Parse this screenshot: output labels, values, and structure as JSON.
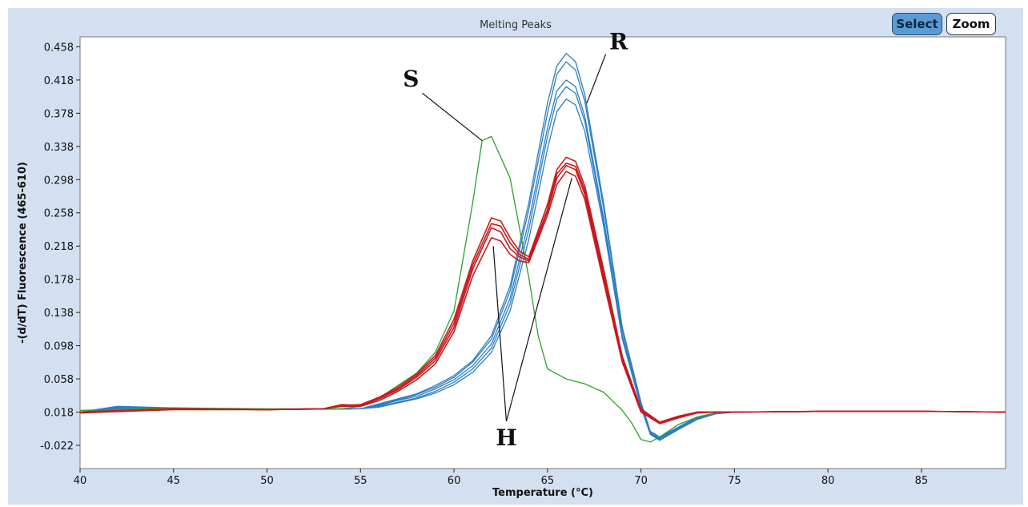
{
  "toolbar": {
    "select_label": "Select",
    "zoom_label": "Zoom"
  },
  "colors": {
    "S": "#2ca02c",
    "H": "#c8191e",
    "R": "#2b7dc6"
  },
  "chart_data": {
    "type": "line",
    "title": "Melting Peaks",
    "xlabel": "Temperature (°C)",
    "ylabel": "-(d/dT) Fluorescence (465-610)",
    "xlim": [
      40,
      89.5
    ],
    "ylim": [
      -0.05,
      0.47
    ],
    "x_ticks": [
      "40",
      "45",
      "50",
      "55",
      "60",
      "65",
      "70",
      "75",
      "80",
      "85"
    ],
    "y_ticks": [
      "0.458",
      "0.418",
      "0.378",
      "0.338",
      "0.298",
      "0.258",
      "0.218",
      "0.178",
      "0.138",
      "0.098",
      "0.058",
      "0.018",
      "-0.022"
    ],
    "grid": false,
    "series": [
      {
        "group": "S",
        "color": "#2ca02c",
        "x": [
          40,
          45,
          50,
          54,
          55,
          56,
          57,
          58,
          59,
          60,
          61,
          61.5,
          62,
          63,
          64,
          64.5,
          65,
          66,
          67,
          68,
          69,
          69.5,
          70,
          70.5,
          71,
          72,
          73,
          74,
          75,
          80,
          85,
          89.5
        ],
        "y": [
          0.02,
          0.023,
          0.022,
          0.022,
          0.025,
          0.035,
          0.05,
          0.065,
          0.09,
          0.14,
          0.27,
          0.345,
          0.35,
          0.3,
          0.18,
          0.11,
          0.07,
          0.058,
          0.052,
          0.042,
          0.02,
          0.005,
          -0.015,
          -0.018,
          -0.012,
          0.003,
          0.012,
          0.017,
          0.018,
          0.019,
          0.019,
          0.018
        ]
      },
      {
        "group": "H",
        "color": "#c8191e",
        "x": [
          40,
          45,
          50,
          53,
          54,
          55,
          56,
          57,
          58,
          59,
          60,
          61,
          62,
          62.5,
          63,
          63.5,
          64,
          65,
          65.5,
          66,
          66.5,
          67,
          68,
          69,
          70,
          71,
          72,
          73,
          74,
          75,
          80,
          85,
          89.5
        ],
        "y": [
          0.018,
          0.022,
          0.021,
          0.022,
          0.026,
          0.026,
          0.034,
          0.045,
          0.06,
          0.08,
          0.12,
          0.19,
          0.24,
          0.235,
          0.215,
          0.205,
          0.2,
          0.26,
          0.3,
          0.315,
          0.31,
          0.28,
          0.18,
          0.08,
          0.02,
          0.005,
          0.012,
          0.018,
          0.018,
          0.018,
          0.019,
          0.019,
          0.018
        ]
      },
      {
        "group": "H",
        "color": "#c8191e",
        "x": [
          40,
          45,
          50,
          53,
          54,
          55,
          56,
          57,
          58,
          59,
          60,
          61,
          62,
          62.5,
          63,
          63.5,
          64,
          65,
          65.5,
          66,
          66.5,
          67,
          68,
          69,
          70,
          71,
          72,
          73,
          74,
          75,
          80,
          85,
          89.5
        ],
        "y": [
          0.018,
          0.022,
          0.021,
          0.022,
          0.026,
          0.027,
          0.036,
          0.048,
          0.064,
          0.086,
          0.13,
          0.2,
          0.252,
          0.248,
          0.228,
          0.212,
          0.205,
          0.268,
          0.31,
          0.325,
          0.32,
          0.29,
          0.19,
          0.085,
          0.022,
          0.006,
          0.013,
          0.018,
          0.018,
          0.018,
          0.019,
          0.019,
          0.018
        ]
      },
      {
        "group": "H",
        "color": "#c8191e",
        "x": [
          40,
          45,
          50,
          53,
          54,
          55,
          56,
          57,
          58,
          59,
          60,
          61,
          62,
          62.5,
          63,
          63.5,
          64,
          65,
          65.5,
          66,
          66.5,
          67,
          68,
          69,
          70,
          71,
          72,
          73,
          74,
          75,
          80,
          85,
          89.5
        ],
        "y": [
          0.017,
          0.021,
          0.021,
          0.022,
          0.025,
          0.025,
          0.032,
          0.043,
          0.057,
          0.076,
          0.115,
          0.182,
          0.228,
          0.224,
          0.208,
          0.2,
          0.198,
          0.255,
          0.292,
          0.308,
          0.302,
          0.274,
          0.175,
          0.078,
          0.018,
          0.004,
          0.011,
          0.017,
          0.018,
          0.018,
          0.019,
          0.019,
          0.018
        ]
      },
      {
        "group": "H",
        "color": "#c8191e",
        "x": [
          40,
          45,
          50,
          53,
          54,
          55,
          56,
          57,
          58,
          59,
          60,
          61,
          62,
          62.5,
          63,
          63.5,
          64,
          65,
          65.5,
          66,
          66.5,
          67,
          68,
          69,
          70,
          71,
          72,
          73,
          74,
          75,
          80,
          85,
          89.5
        ],
        "y": [
          0.018,
          0.022,
          0.021,
          0.022,
          0.027,
          0.026,
          0.035,
          0.046,
          0.062,
          0.083,
          0.125,
          0.195,
          0.245,
          0.242,
          0.222,
          0.208,
          0.202,
          0.262,
          0.305,
          0.318,
          0.314,
          0.285,
          0.185,
          0.082,
          0.02,
          0.005,
          0.012,
          0.018,
          0.018,
          0.018,
          0.019,
          0.019,
          0.018
        ]
      },
      {
        "group": "R",
        "color": "#2b7dc6",
        "x": [
          40,
          42,
          45,
          50,
          55,
          56,
          57,
          58,
          59,
          60,
          61,
          62,
          63,
          64,
          65,
          65.5,
          66,
          66.5,
          67,
          68,
          69,
          70,
          70.5,
          71,
          72,
          73,
          74,
          75,
          80,
          85,
          89.5
        ],
        "y": [
          0.018,
          0.024,
          0.022,
          0.021,
          0.022,
          0.028,
          0.034,
          0.04,
          0.05,
          0.062,
          0.08,
          0.11,
          0.17,
          0.27,
          0.39,
          0.435,
          0.45,
          0.44,
          0.4,
          0.27,
          0.12,
          0.03,
          -0.005,
          -0.012,
          0.0,
          0.012,
          0.017,
          0.018,
          0.019,
          0.019,
          0.018
        ]
      },
      {
        "group": "R",
        "color": "#2b7dc6",
        "x": [
          40,
          42,
          45,
          50,
          55,
          56,
          57,
          58,
          59,
          60,
          61,
          62,
          63,
          64,
          65,
          65.5,
          66,
          66.5,
          67,
          68,
          69,
          70,
          70.5,
          71,
          72,
          73,
          74,
          75,
          80,
          85,
          89.5
        ],
        "y": [
          0.018,
          0.023,
          0.022,
          0.021,
          0.022,
          0.027,
          0.033,
          0.039,
          0.048,
          0.06,
          0.078,
          0.106,
          0.164,
          0.262,
          0.378,
          0.425,
          0.44,
          0.43,
          0.392,
          0.264,
          0.116,
          0.028,
          -0.006,
          -0.013,
          -0.001,
          0.011,
          0.017,
          0.018,
          0.019,
          0.019,
          0.018
        ]
      },
      {
        "group": "R",
        "color": "#2b7dc6",
        "x": [
          40,
          42,
          45,
          50,
          55,
          56,
          57,
          58,
          59,
          60,
          61,
          62,
          63,
          64,
          65,
          65.5,
          66,
          66.5,
          67,
          68,
          69,
          70,
          70.5,
          71,
          72,
          73,
          74,
          75,
          80,
          85,
          89.5
        ],
        "y": [
          0.018,
          0.025,
          0.023,
          0.021,
          0.022,
          0.026,
          0.032,
          0.037,
          0.046,
          0.057,
          0.074,
          0.1,
          0.155,
          0.248,
          0.36,
          0.405,
          0.418,
          0.41,
          0.374,
          0.252,
          0.11,
          0.026,
          -0.007,
          -0.014,
          -0.002,
          0.01,
          0.016,
          0.018,
          0.019,
          0.019,
          0.018
        ]
      },
      {
        "group": "R",
        "color": "#2b7dc6",
        "x": [
          40,
          42,
          45,
          50,
          55,
          56,
          57,
          58,
          59,
          60,
          61,
          62,
          63,
          64,
          65,
          65.5,
          66,
          66.5,
          67,
          68,
          69,
          70,
          70.5,
          71,
          72,
          73,
          74,
          75,
          80,
          85,
          89.5
        ],
        "y": [
          0.018,
          0.022,
          0.022,
          0.021,
          0.022,
          0.025,
          0.03,
          0.035,
          0.043,
          0.054,
          0.07,
          0.095,
          0.148,
          0.238,
          0.35,
          0.395,
          0.41,
          0.402,
          0.368,
          0.248,
          0.108,
          0.025,
          -0.008,
          -0.015,
          -0.002,
          0.01,
          0.016,
          0.018,
          0.019,
          0.019,
          0.018
        ]
      },
      {
        "group": "R",
        "color": "#2b7dc6",
        "x": [
          40,
          42,
          45,
          50,
          55,
          56,
          57,
          58,
          59,
          60,
          61,
          62,
          63,
          64,
          65,
          65.5,
          66,
          66.5,
          67,
          68,
          69,
          70,
          70.5,
          71,
          72,
          73,
          74,
          75,
          80,
          85,
          89.5
        ],
        "y": [
          0.018,
          0.021,
          0.022,
          0.021,
          0.022,
          0.024,
          0.029,
          0.034,
          0.041,
          0.051,
          0.066,
          0.09,
          0.14,
          0.226,
          0.335,
          0.38,
          0.395,
          0.388,
          0.356,
          0.242,
          0.106,
          0.024,
          -0.009,
          -0.016,
          -0.003,
          0.009,
          0.016,
          0.018,
          0.019,
          0.019,
          0.018
        ]
      }
    ],
    "annotations": [
      {
        "text": "S",
        "x": 57.7,
        "y": 0.41,
        "points_to": [
          [
            61.5,
            0.345
          ]
        ]
      },
      {
        "text": "R",
        "x": 68.8,
        "y": 0.455,
        "points_to": [
          [
            67.1,
            0.39
          ]
        ]
      },
      {
        "text": "H",
        "x": 62.8,
        "y": -0.022,
        "points_to": [
          [
            62.1,
            0.218
          ],
          [
            66.3,
            0.3
          ]
        ]
      }
    ]
  }
}
